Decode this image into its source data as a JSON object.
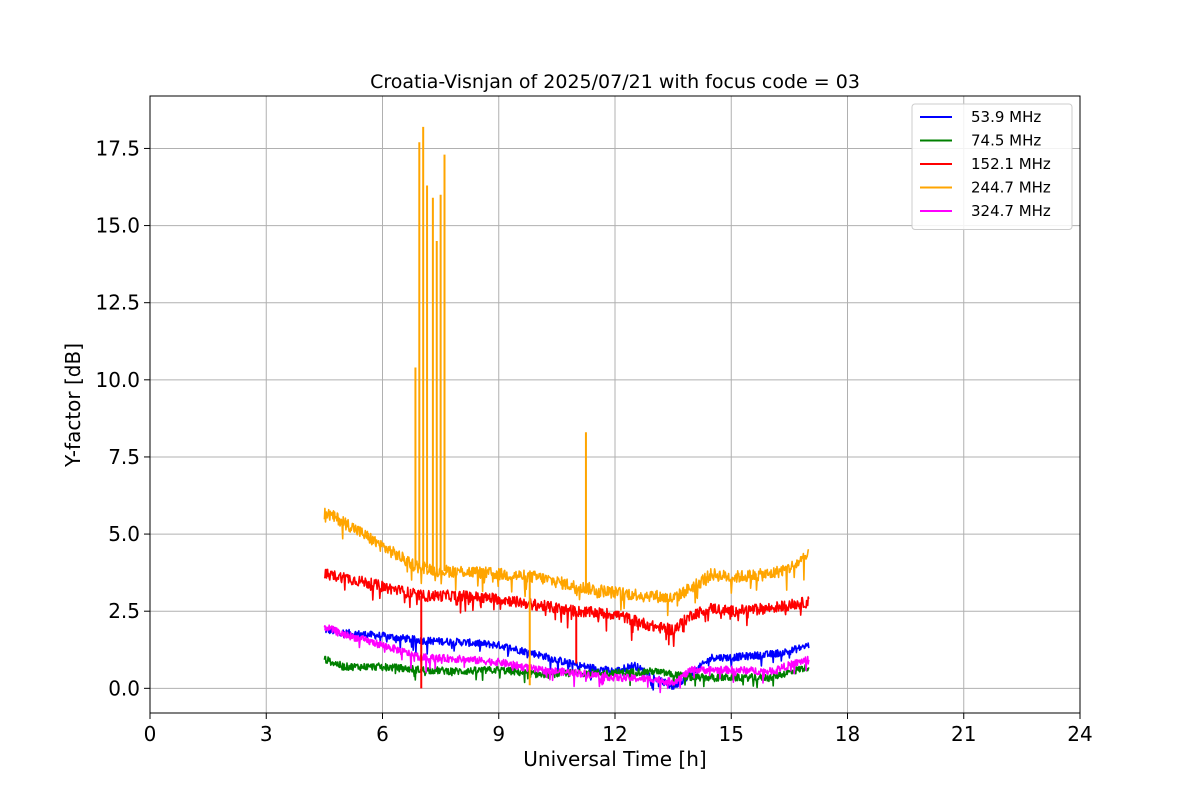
{
  "chart_data": {
    "type": "line",
    "title": "Croatia-Visnjan of 2025/07/21 with focus code = 03",
    "xlabel": "Universal Time [h]",
    "ylabel": "Y-factor [dB]",
    "xlim": [
      0,
      24
    ],
    "ylim": [
      -0.8,
      19.2
    ],
    "xticks": [
      0,
      3,
      6,
      9,
      12,
      15,
      18,
      21,
      24
    ],
    "xtick_labels": [
      "0",
      "3",
      "6",
      "9",
      "12",
      "15",
      "18",
      "21",
      "24"
    ],
    "yticks": [
      0,
      2.5,
      5,
      7.5,
      10,
      12.5,
      15,
      17.5
    ],
    "ytick_labels": [
      "0.0",
      "2.5",
      "5.0",
      "7.5",
      "10.0",
      "12.5",
      "15.0",
      "17.5"
    ],
    "grid": true,
    "legend_position": "top-right",
    "series": [
      {
        "name": "53.9 MHz",
        "color": "#0000ff",
        "x": [
          4.5,
          5.0,
          6.0,
          7.0,
          8.0,
          9.0,
          10.0,
          11.0,
          12.0,
          12.5,
          13.0,
          13.5,
          14.0,
          14.5,
          15.0,
          16.0,
          16.5,
          17.0
        ],
        "y": [
          1.9,
          1.8,
          1.7,
          1.55,
          1.5,
          1.4,
          1.1,
          0.75,
          0.55,
          0.75,
          0.35,
          0.05,
          0.5,
          1.0,
          1.0,
          1.1,
          1.2,
          1.4
        ],
        "noise": 0.12
      },
      {
        "name": "74.5 MHz",
        "color": "#008000",
        "x": [
          4.5,
          5.0,
          6.0,
          7.0,
          8.0,
          9.0,
          10.0,
          11.0,
          12.0,
          13.0,
          14.0,
          15.0,
          16.0,
          17.0
        ],
        "y": [
          0.95,
          0.7,
          0.7,
          0.6,
          0.55,
          0.6,
          0.45,
          0.5,
          0.5,
          0.55,
          0.35,
          0.35,
          0.35,
          0.7
        ],
        "noise": 0.12
      },
      {
        "name": "152.1 MHz",
        "color": "#ff0000",
        "x": [
          4.5,
          5.0,
          6.0,
          7.0,
          8.0,
          9.0,
          10.0,
          11.0,
          12.0,
          13.0,
          13.5,
          14.0,
          14.5,
          15.0,
          16.0,
          17.0
        ],
        "y": [
          3.7,
          3.6,
          3.3,
          3.0,
          3.0,
          2.9,
          2.7,
          2.5,
          2.4,
          2.0,
          1.9,
          2.4,
          2.6,
          2.5,
          2.6,
          2.8
        ],
        "noise": 0.18
      },
      {
        "name": "244.7 MHz",
        "color": "#ffa500",
        "x": [
          4.5,
          5.0,
          6.0,
          6.8,
          7.5,
          8.0,
          9.0,
          10.0,
          11.0,
          12.0,
          13.0,
          13.5,
          14.0,
          14.5,
          15.0,
          16.0,
          16.5,
          17.0
        ],
        "y": [
          5.7,
          5.4,
          4.6,
          4.0,
          3.8,
          3.8,
          3.7,
          3.6,
          3.3,
          3.1,
          3.0,
          2.9,
          3.3,
          3.7,
          3.6,
          3.7,
          3.9,
          4.3
        ],
        "noise": 0.2
      },
      {
        "name": "324.7 MHz",
        "color": "#ff00ff",
        "x": [
          4.5,
          5.0,
          6.0,
          7.0,
          8.0,
          9.0,
          10.0,
          11.0,
          12.0,
          13.0,
          13.5,
          14.0,
          15.0,
          16.0,
          17.0
        ],
        "y": [
          2.0,
          1.75,
          1.4,
          1.0,
          0.95,
          0.85,
          0.6,
          0.5,
          0.35,
          0.3,
          0.2,
          0.6,
          0.6,
          0.55,
          0.95
        ],
        "noise": 0.12
      }
    ],
    "spikes": [
      {
        "series": "244.7 MHz",
        "x": 6.85,
        "y": 10.4
      },
      {
        "series": "244.7 MHz",
        "x": 6.95,
        "y": 17.7
      },
      {
        "series": "244.7 MHz",
        "x": 7.05,
        "y": 18.2
      },
      {
        "series": "244.7 MHz",
        "x": 7.15,
        "y": 16.3
      },
      {
        "series": "244.7 MHz",
        "x": 7.3,
        "y": 15.9
      },
      {
        "series": "244.7 MHz",
        "x": 7.4,
        "y": 14.5
      },
      {
        "series": "244.7 MHz",
        "x": 7.5,
        "y": 16.0
      },
      {
        "series": "244.7 MHz",
        "x": 7.6,
        "y": 17.3
      },
      {
        "series": "244.7 MHz",
        "x": 11.25,
        "y": 8.3
      },
      {
        "series": "244.7 MHz",
        "x": 9.8,
        "y": 0.1
      },
      {
        "series": "152.1 MHz",
        "x": 7.0,
        "y": 0.0
      },
      {
        "series": "152.1 MHz",
        "x": 11.0,
        "y": 0.8
      }
    ]
  }
}
